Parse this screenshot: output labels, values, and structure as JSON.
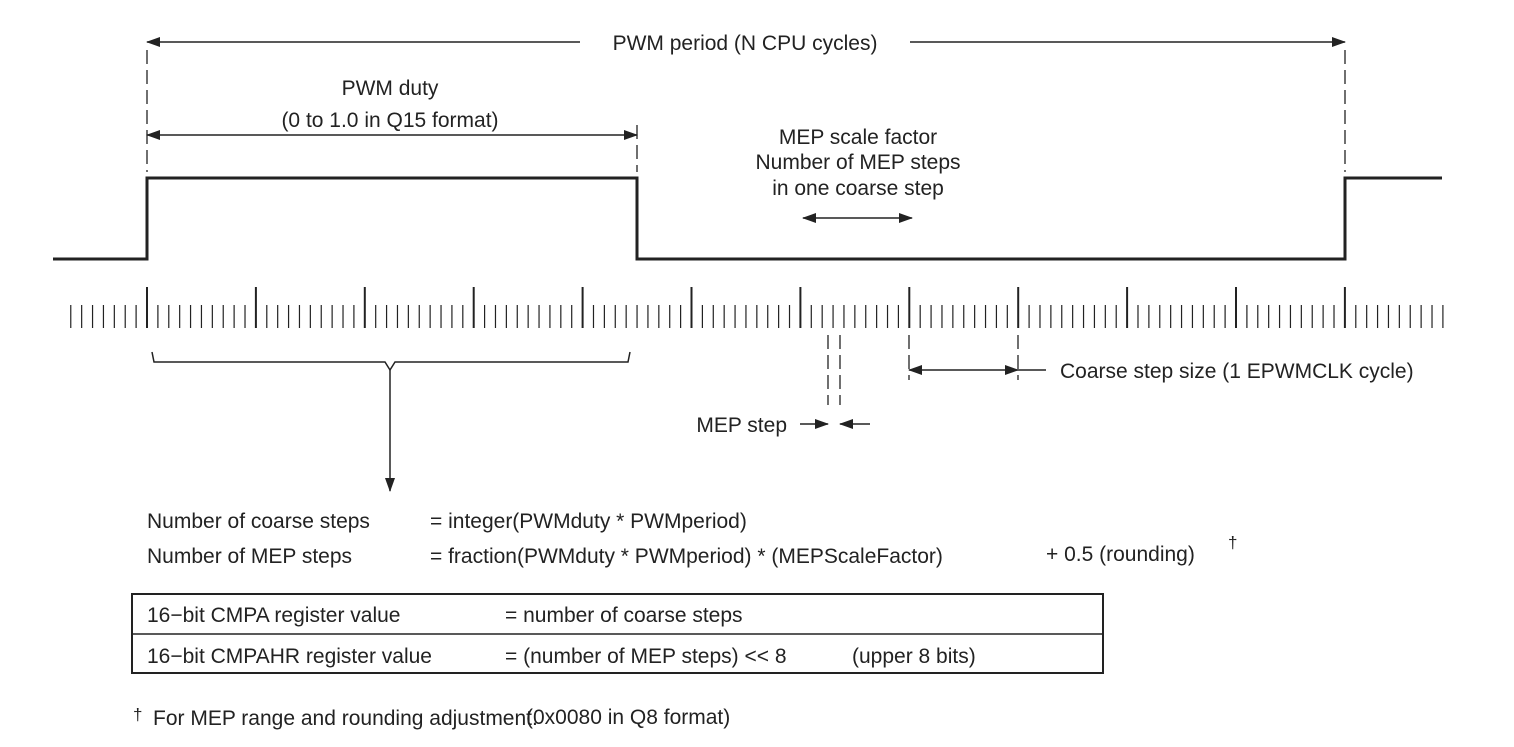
{
  "labels": {
    "period": "PWM period (N CPU cycles)",
    "duty": [
      "PWM duty",
      "(0 to 1.0 in Q15 format)"
    ],
    "mep_scale": [
      "MEP scale factor",
      "Number of MEP steps",
      "in one coarse step"
    ],
    "coarse_step": "Coarse step size (1 EPWMCLK cycle)",
    "mep_step": "MEP step"
  },
  "formulas": [
    {
      "name": "Number of coarse steps",
      "expr": "= integer(PWMduty * PWMperiod)"
    },
    {
      "name": "Number of MEP steps",
      "expr": "= fraction(PWMduty * PWMperiod) * (MEPScaleFactor)",
      "extra": "+ 0.5 (rounding)",
      "mark": "†"
    }
  ],
  "table": {
    "rows": [
      [
        "16−bit CMPA register value",
        "= number of coarse steps"
      ],
      [
        "16−bit CMPAHR register value",
        "= (number of MEP steps) << 8",
        "(upper 8 bits)"
      ]
    ]
  },
  "footnote": {
    "mark": "†",
    "text": "For MEP range and rounding adjustment.",
    "note": "(0x0080 in Q8 format)"
  }
}
